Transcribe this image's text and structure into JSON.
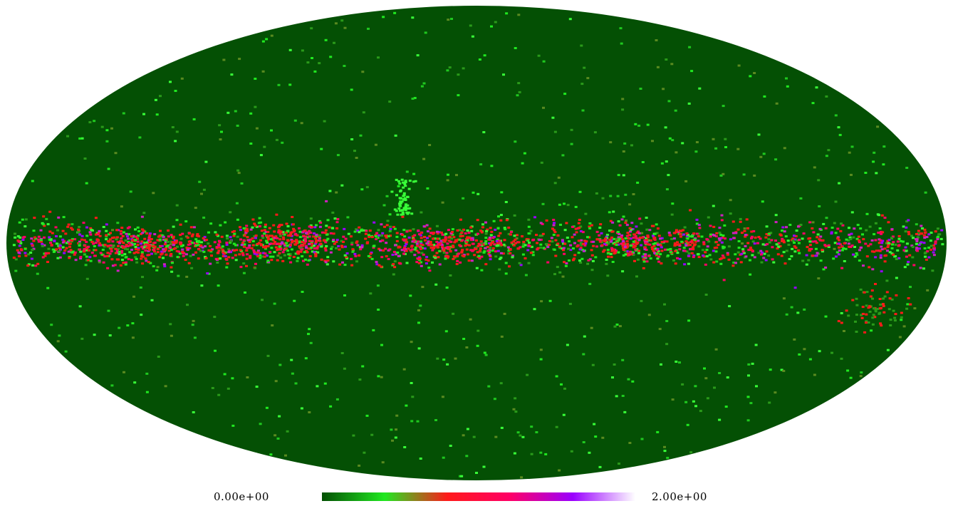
{
  "map": {
    "projection": "mollweide",
    "background_color": "#045004",
    "colormap": [
      "#045004",
      "#20e820",
      "#ff1a1a",
      "#ff0066",
      "#9a00ff",
      "#ffffff"
    ],
    "scale_min": 0.0,
    "scale_max": 2.0
  },
  "colorbar": {
    "min_label": "0.00e+00",
    "max_label": "2.00e+00"
  }
}
